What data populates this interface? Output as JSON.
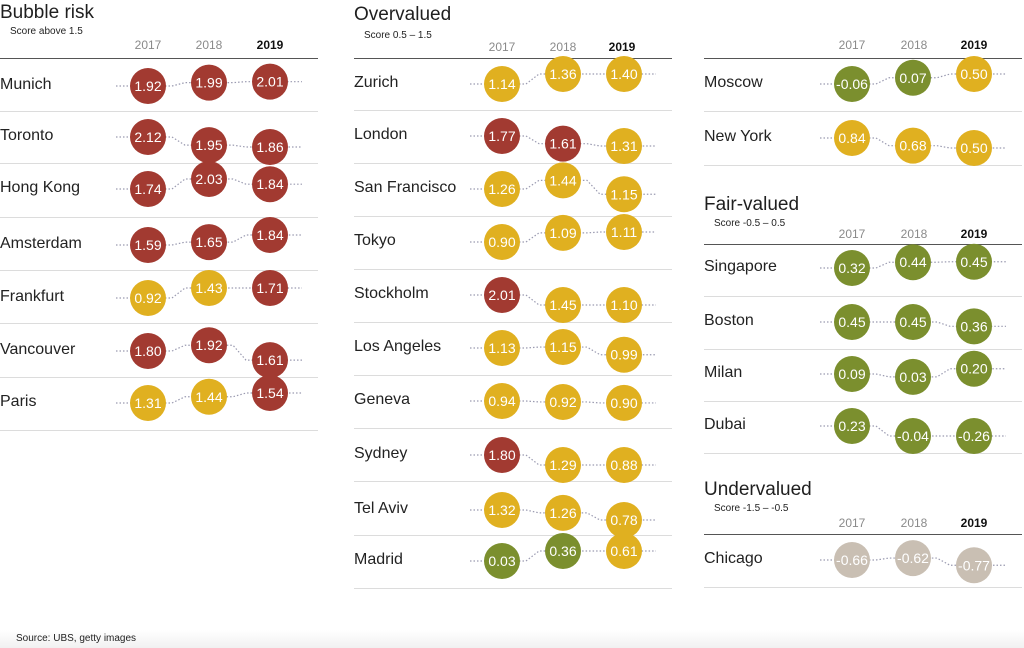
{
  "years": [
    "2017",
    "2018",
    "2019"
  ],
  "colors": {
    "bubble_risk": "#a23a31",
    "overvalued": "#e0b020",
    "fair_valued": "#7b8f2e",
    "undervalued": "#c9bfb3"
  },
  "source": "Source: UBS, getty images",
  "chart_data": [
    {
      "type": "scatter",
      "title": "Bubble risk",
      "subtitle": "Score above 1.5",
      "categories": [
        "Munich",
        "Toronto",
        "Hong Kong",
        "Amsterdam",
        "Frankfurt",
        "Vancouver",
        "Paris"
      ],
      "series": [
        {
          "name": "2017",
          "values": [
            1.92,
            2.12,
            1.74,
            1.59,
            0.92,
            1.8,
            1.31
          ]
        },
        {
          "name": "2018",
          "values": [
            1.99,
            1.95,
            2.03,
            1.65,
            1.43,
            1.92,
            1.44
          ]
        },
        {
          "name": "2019",
          "values": [
            2.01,
            1.86,
            1.84,
            1.84,
            1.71,
            1.61,
            1.54
          ]
        }
      ]
    },
    {
      "type": "scatter",
      "title": "Overvalued",
      "subtitle": "Score 0.5 – 1.5",
      "categories": [
        "Zurich",
        "London",
        "San Francisco",
        "Tokyo",
        "Stockholm",
        "Los Angeles",
        "Geneva",
        "Sydney",
        "Tel Aviv",
        "Madrid"
      ],
      "series": [
        {
          "name": "2017",
          "values": [
            1.14,
            1.77,
            1.26,
            0.9,
            2.01,
            1.13,
            0.94,
            1.8,
            1.32,
            0.03
          ]
        },
        {
          "name": "2018",
          "values": [
            1.36,
            1.61,
            1.44,
            1.09,
            1.45,
            1.15,
            0.92,
            1.29,
            1.26,
            0.36
          ]
        },
        {
          "name": "2019",
          "values": [
            1.4,
            1.31,
            1.15,
            1.11,
            1.1,
            0.99,
            0.9,
            0.88,
            0.78,
            0.61
          ]
        }
      ]
    },
    {
      "type": "scatter",
      "title": "",
      "subtitle": "",
      "categories": [
        "Moscow",
        "New York"
      ],
      "series": [
        {
          "name": "2017",
          "values": [
            -0.06,
            0.84
          ]
        },
        {
          "name": "2018",
          "values": [
            0.07,
            0.68
          ]
        },
        {
          "name": "2019",
          "values": [
            0.5,
            0.5
          ]
        }
      ]
    },
    {
      "type": "scatter",
      "title": "Fair-valued",
      "subtitle": "Score -0.5 – 0.5",
      "categories": [
        "Singapore",
        "Boston",
        "Milan",
        "Dubai"
      ],
      "series": [
        {
          "name": "2017",
          "values": [
            0.32,
            0.45,
            0.09,
            0.23
          ]
        },
        {
          "name": "2018",
          "values": [
            0.44,
            0.45,
            0.03,
            -0.04
          ]
        },
        {
          "name": "2019",
          "values": [
            0.45,
            0.36,
            0.2,
            -0.26
          ]
        }
      ]
    },
    {
      "type": "scatter",
      "title": "Undervalued",
      "subtitle": "Score -1.5 – -0.5",
      "categories": [
        "Chicago"
      ],
      "series": [
        {
          "name": "2017",
          "values": [
            -0.66
          ]
        },
        {
          "name": "2018",
          "values": [
            -0.62
          ]
        },
        {
          "name": "2019",
          "values": [
            -0.77
          ]
        }
      ]
    }
  ]
}
